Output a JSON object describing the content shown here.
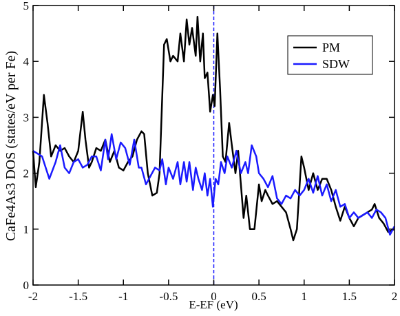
{
  "chart_data": {
    "type": "line",
    "x_label": "E-EF (eV)",
    "y_label": "CaFe4As3 DOS (states/eV per Fe)",
    "xlim": [
      -2,
      2
    ],
    "ylim": [
      0,
      5
    ],
    "xticks": [
      -2,
      -1.5,
      -1,
      -0.5,
      0,
      0.5,
      1,
      1.5,
      2
    ],
    "yticks": [
      0,
      1,
      2,
      3,
      4,
      5
    ],
    "vline": 0,
    "vline_color": "#1a1aff",
    "legend": "upper right",
    "series": [
      {
        "name": "PM",
        "color": "#000000",
        "x": [
          -2,
          -1.97,
          -1.93,
          -1.88,
          -1.84,
          -1.8,
          -1.75,
          -1.7,
          -1.65,
          -1.6,
          -1.55,
          -1.5,
          -1.45,
          -1.42,
          -1.38,
          -1.35,
          -1.3,
          -1.25,
          -1.2,
          -1.15,
          -1.1,
          -1.05,
          -1,
          -0.95,
          -0.9,
          -0.85,
          -0.8,
          -0.77,
          -0.73,
          -0.68,
          -0.63,
          -0.6,
          -0.55,
          -0.52,
          -0.48,
          -0.45,
          -0.4,
          -0.37,
          -0.33,
          -0.3,
          -0.27,
          -0.24,
          -0.2,
          -0.18,
          -0.15,
          -0.12,
          -0.1,
          -0.07,
          -0.04,
          -0.01,
          0.01,
          0.04,
          0.07,
          0.1,
          0.13,
          0.17,
          0.2,
          0.24,
          0.27,
          0.3,
          0.33,
          0.36,
          0.4,
          0.45,
          0.5,
          0.53,
          0.57,
          0.6,
          0.65,
          0.7,
          0.75,
          0.8,
          0.85,
          0.88,
          0.92,
          0.97,
          1,
          1.05,
          1.1,
          1.15,
          1.2,
          1.25,
          1.3,
          1.35,
          1.4,
          1.45,
          1.5,
          1.55,
          1.6,
          1.65,
          1.7,
          1.75,
          1.78,
          1.83,
          1.88,
          1.93,
          2
        ],
        "values": [
          2.4,
          1.75,
          2.2,
          3.4,
          2.9,
          2.3,
          2.5,
          2.4,
          2.45,
          2.3,
          2.2,
          2.4,
          3.1,
          2.6,
          2.1,
          2.2,
          2.45,
          2.4,
          2.6,
          2.2,
          2.4,
          2.1,
          2.05,
          2.2,
          2.3,
          2.6,
          2.75,
          2.7,
          2.0,
          1.6,
          1.65,
          2.0,
          4.3,
          4.4,
          4.0,
          4.1,
          4.0,
          4.5,
          4.0,
          4.75,
          4.3,
          4.6,
          4.1,
          4.8,
          4.0,
          4.5,
          3.7,
          3.8,
          3.1,
          3.4,
          3.2,
          4.5,
          3.5,
          2.3,
          2.2,
          2.9,
          2.5,
          2.0,
          2.4,
          1.8,
          1.2,
          1.6,
          1.0,
          1.0,
          1.8,
          1.5,
          1.7,
          1.6,
          1.45,
          1.5,
          1.4,
          1.3,
          1.0,
          0.8,
          1.0,
          2.3,
          2.1,
          1.7,
          2.0,
          1.7,
          1.9,
          1.9,
          1.7,
          1.4,
          1.15,
          1.4,
          1.2,
          1.05,
          1.2,
          1.25,
          1.3,
          1.35,
          1.45,
          1.2,
          1.1,
          0.95,
          1.0
        ]
      },
      {
        "name": "SDW",
        "color": "#1a1aff",
        "x": [
          -2,
          -1.9,
          -1.82,
          -1.75,
          -1.7,
          -1.65,
          -1.6,
          -1.55,
          -1.5,
          -1.45,
          -1.4,
          -1.35,
          -1.3,
          -1.25,
          -1.2,
          -1.17,
          -1.13,
          -1.08,
          -1.03,
          -0.98,
          -0.93,
          -0.88,
          -0.83,
          -0.8,
          -0.75,
          -0.7,
          -0.65,
          -0.6,
          -0.57,
          -0.53,
          -0.5,
          -0.45,
          -0.4,
          -0.37,
          -0.33,
          -0.3,
          -0.27,
          -0.23,
          -0.2,
          -0.17,
          -0.13,
          -0.1,
          -0.07,
          -0.04,
          -0.01,
          0.02,
          0.05,
          0.08,
          0.12,
          0.15,
          0.2,
          0.25,
          0.3,
          0.35,
          0.38,
          0.42,
          0.47,
          0.5,
          0.55,
          0.6,
          0.65,
          0.7,
          0.75,
          0.8,
          0.85,
          0.9,
          0.95,
          1,
          1.05,
          1.1,
          1.15,
          1.2,
          1.25,
          1.3,
          1.35,
          1.4,
          1.45,
          1.5,
          1.55,
          1.6,
          1.65,
          1.7,
          1.75,
          1.8,
          1.85,
          1.9,
          1.95,
          2
        ],
        "values": [
          2.4,
          2.3,
          1.9,
          2.2,
          2.5,
          2.1,
          2.0,
          2.2,
          2.25,
          2.1,
          2.15,
          2.3,
          2.3,
          2.05,
          2.6,
          2.25,
          2.7,
          2.25,
          2.55,
          2.45,
          2.15,
          2.6,
          2.1,
          2.1,
          1.8,
          1.95,
          2.1,
          2.05,
          2.25,
          1.8,
          2.1,
          1.9,
          2.2,
          1.8,
          2.2,
          1.85,
          2.2,
          1.7,
          2.1,
          1.9,
          1.7,
          2.0,
          1.6,
          1.9,
          1.4,
          1.9,
          1.8,
          2.2,
          2.0,
          2.3,
          2.1,
          2.4,
          2.0,
          2.2,
          2.0,
          2.5,
          2.3,
          2.0,
          1.9,
          1.75,
          1.95,
          1.55,
          1.45,
          1.6,
          1.55,
          1.7,
          1.6,
          1.7,
          1.9,
          1.65,
          1.95,
          1.6,
          1.8,
          1.5,
          1.7,
          1.4,
          1.45,
          1.2,
          1.3,
          1.2,
          1.25,
          1.3,
          1.2,
          1.35,
          1.3,
          1.2,
          0.9,
          1.05
        ]
      }
    ]
  }
}
